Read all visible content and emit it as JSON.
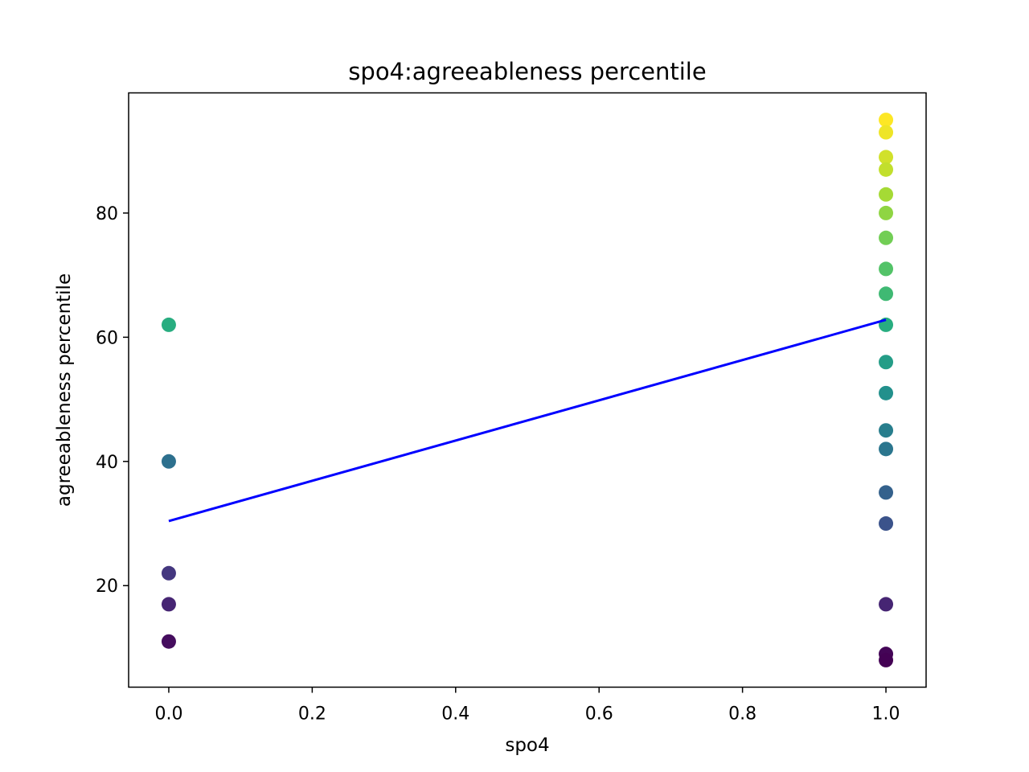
{
  "chart_data": {
    "type": "scatter",
    "title": "spo4:agreeableness percentile",
    "xlabel": "spo4",
    "ylabel": "agreeableness percentile",
    "xlim": [
      -0.056,
      1.056
    ],
    "ylim": [
      3.65,
      99.35
    ],
    "xticks": [
      0.0,
      0.2,
      0.4,
      0.6,
      0.8,
      1.0
    ],
    "xtick_labels": [
      "0.0",
      "0.2",
      "0.4",
      "0.6",
      "0.8",
      "1.0"
    ],
    "yticks": [
      20,
      40,
      60,
      80
    ],
    "ytick_labels": [
      "20",
      "40",
      "60",
      "80"
    ],
    "grid": false,
    "colormap": "viridis",
    "points": [
      {
        "x": 0,
        "y": 62
      },
      {
        "x": 0,
        "y": 40
      },
      {
        "x": 0,
        "y": 22
      },
      {
        "x": 0,
        "y": 17
      },
      {
        "x": 0,
        "y": 11
      },
      {
        "x": 1,
        "y": 95
      },
      {
        "x": 1,
        "y": 93
      },
      {
        "x": 1,
        "y": 89
      },
      {
        "x": 1,
        "y": 87
      },
      {
        "x": 1,
        "y": 83
      },
      {
        "x": 1,
        "y": 80
      },
      {
        "x": 1,
        "y": 76
      },
      {
        "x": 1,
        "y": 71
      },
      {
        "x": 1,
        "y": 67
      },
      {
        "x": 1,
        "y": 62
      },
      {
        "x": 1,
        "y": 56
      },
      {
        "x": 1,
        "y": 51
      },
      {
        "x": 1,
        "y": 45
      },
      {
        "x": 1,
        "y": 42
      },
      {
        "x": 1,
        "y": 35
      },
      {
        "x": 1,
        "y": 30
      },
      {
        "x": 1,
        "y": 17
      },
      {
        "x": 1,
        "y": 9
      },
      {
        "x": 1,
        "y": 8
      }
    ],
    "fit_line": {
      "color": "#0000ff",
      "x": [
        0,
        1
      ],
      "y": [
        30.4,
        62.8
      ]
    }
  }
}
